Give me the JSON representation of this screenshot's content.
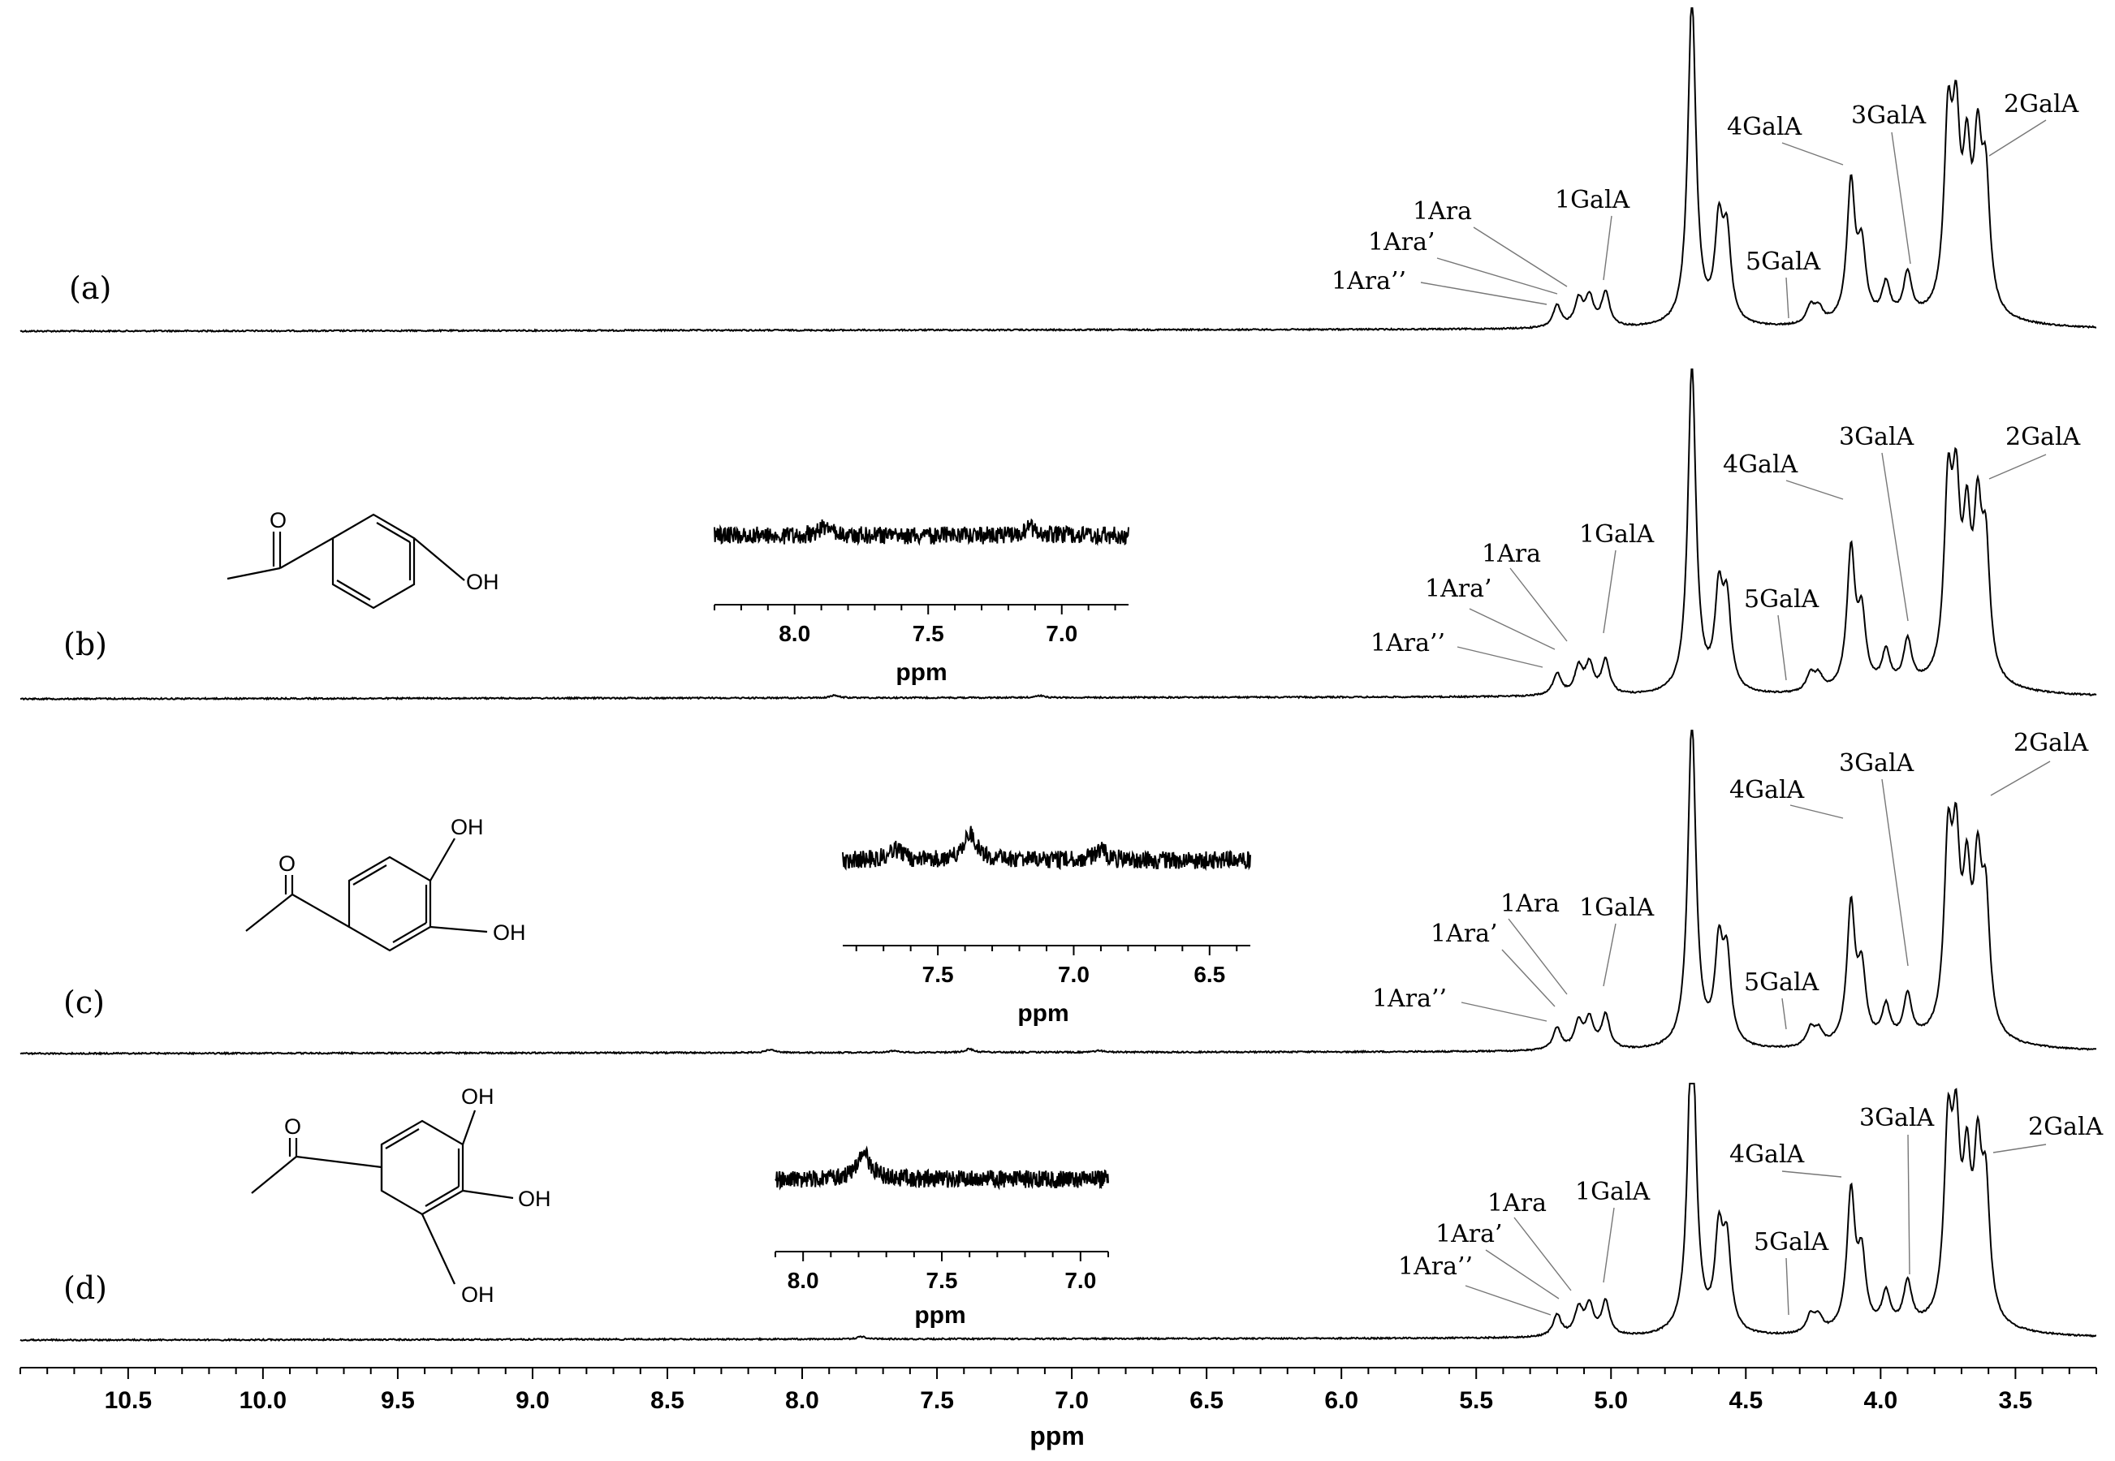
{
  "chart_data": {
    "type": "line",
    "title": "",
    "xlabel": "ppm",
    "ylabel": "",
    "x_reversed": true,
    "xlim": [
      10.9,
      3.2
    ],
    "x_ticks": [
      10.5,
      10.0,
      9.5,
      9.0,
      8.5,
      8.0,
      7.5,
      7.0,
      6.5,
      6.0,
      5.5,
      5.0,
      4.5,
      4.0,
      3.5
    ],
    "x_tick_labels": [
      "10.5",
      "10.0",
      "9.5",
      "9.0",
      "8.5",
      "8.0",
      "7.5",
      "7.0",
      "6.5",
      "6.0",
      "5.5",
      "5.0",
      "4.5",
      "4.0",
      "3.5"
    ],
    "peaks_common": [
      {
        "ppm": 5.2,
        "height": 0.09
      },
      {
        "ppm": 5.12,
        "height": 0.11
      },
      {
        "ppm": 5.08,
        "height": 0.12
      },
      {
        "ppm": 5.02,
        "height": 0.14
      },
      {
        "ppm": 4.7,
        "height": 1.35
      },
      {
        "ppm": 4.6,
        "height": 0.38
      },
      {
        "ppm": 4.57,
        "height": 0.34
      },
      {
        "ppm": 4.26,
        "height": 0.07
      },
      {
        "ppm": 4.23,
        "height": 0.06
      },
      {
        "ppm": 4.11,
        "height": 0.56
      },
      {
        "ppm": 4.07,
        "height": 0.28
      },
      {
        "ppm": 3.98,
        "height": 0.14
      },
      {
        "ppm": 3.9,
        "height": 0.18
      },
      {
        "ppm": 3.75,
        "height": 0.72
      },
      {
        "ppm": 3.72,
        "height": 0.66
      },
      {
        "ppm": 3.68,
        "height": 0.55
      },
      {
        "ppm": 3.64,
        "height": 0.6
      },
      {
        "ppm": 3.61,
        "height": 0.5
      }
    ],
    "series": [
      {
        "panel": "(a)",
        "extra_peaks": [],
        "labels": [
          {
            "text": "1Ara",
            "ppm": 5.12
          },
          {
            "text": "1Ara’",
            "ppm": 5.1
          },
          {
            "text": "1Ara’’",
            "ppm": 5.2
          },
          {
            "text": "1GalA",
            "ppm": 5.02
          },
          {
            "text": "4GalA",
            "ppm": 4.11
          },
          {
            "text": "5GalA",
            "ppm": 4.35
          },
          {
            "text": "3GalA",
            "ppm": 3.9
          },
          {
            "text": "2GalA",
            "ppm": 3.64
          }
        ],
        "inset": null
      },
      {
        "panel": "(b)",
        "extra_peaks": [
          {
            "ppm": 7.88,
            "height": 0.01
          },
          {
            "ppm": 7.12,
            "height": 0.008
          }
        ],
        "labels": [
          {
            "text": "1Ara",
            "ppm": 5.12
          },
          {
            "text": "1Ara’",
            "ppm": 5.1
          },
          {
            "text": "1Ara’’",
            "ppm": 5.2
          },
          {
            "text": "1GalA",
            "ppm": 5.02
          },
          {
            "text": "4GalA",
            "ppm": 4.11
          },
          {
            "text": "5GalA",
            "ppm": 4.35
          },
          {
            "text": "3GalA",
            "ppm": 3.9
          },
          {
            "text": "2GalA",
            "ppm": 3.64
          }
        ],
        "structure_substituents": [
          "OH"
        ],
        "inset": {
          "xlim": [
            8.3,
            6.75
          ],
          "ticks": [
            8.0,
            7.5,
            7.0
          ],
          "tick_labels": [
            "8.0",
            "7.5",
            "7.0"
          ],
          "xlabel": "ppm",
          "peaks": [
            {
              "ppm": 7.88,
              "height": 0.12
            },
            {
              "ppm": 7.12,
              "height": 0.1
            }
          ]
        }
      },
      {
        "panel": "(c)",
        "extra_peaks": [
          {
            "ppm": 8.12,
            "height": 0.012
          },
          {
            "ppm": 7.66,
            "height": 0.008
          },
          {
            "ppm": 7.38,
            "height": 0.014
          },
          {
            "ppm": 6.9,
            "height": 0.007
          }
        ],
        "labels": [
          {
            "text": "1Ara",
            "ppm": 5.12
          },
          {
            "text": "1Ara’",
            "ppm": 5.1
          },
          {
            "text": "1Ara’’",
            "ppm": 5.2
          },
          {
            "text": "1GalA",
            "ppm": 5.02
          },
          {
            "text": "4GalA",
            "ppm": 4.11
          },
          {
            "text": "5GalA",
            "ppm": 4.35
          },
          {
            "text": "3GalA",
            "ppm": 3.9
          },
          {
            "text": "2GalA",
            "ppm": 3.64
          }
        ],
        "structure_substituents": [
          "OH",
          "OH"
        ],
        "inset": {
          "xlim": [
            7.85,
            6.35
          ],
          "ticks": [
            7.5,
            7.0,
            6.5
          ],
          "tick_labels": [
            "7.5",
            "7.0",
            "6.5"
          ],
          "xlabel": "ppm",
          "peaks": [
            {
              "ppm": 7.66,
              "height": 0.14
            },
            {
              "ppm": 7.38,
              "height": 0.32
            },
            {
              "ppm": 6.9,
              "height": 0.12
            }
          ]
        }
      },
      {
        "panel": "(d)",
        "extra_peaks": [
          {
            "ppm": 7.78,
            "height": 0.01
          }
        ],
        "labels": [
          {
            "text": "1Ara",
            "ppm": 5.12
          },
          {
            "text": "1Ara’",
            "ppm": 5.1
          },
          {
            "text": "1Ara’’",
            "ppm": 5.2
          },
          {
            "text": "1GalA",
            "ppm": 5.02
          },
          {
            "text": "4GalA",
            "ppm": 4.11
          },
          {
            "text": "5GalA",
            "ppm": 4.35
          },
          {
            "text": "3GalA",
            "ppm": 3.9
          },
          {
            "text": "2GalA",
            "ppm": 3.64
          }
        ],
        "structure_substituents": [
          "OH",
          "OH",
          "OH"
        ],
        "inset": {
          "xlim": [
            8.1,
            6.9
          ],
          "ticks": [
            8.0,
            7.5,
            7.0
          ],
          "tick_labels": [
            "8.0",
            "7.5",
            "7.0"
          ],
          "xlabel": "ppm",
          "peaks": [
            {
              "ppm": 7.78,
              "height": 0.3
            }
          ]
        }
      }
    ]
  }
}
